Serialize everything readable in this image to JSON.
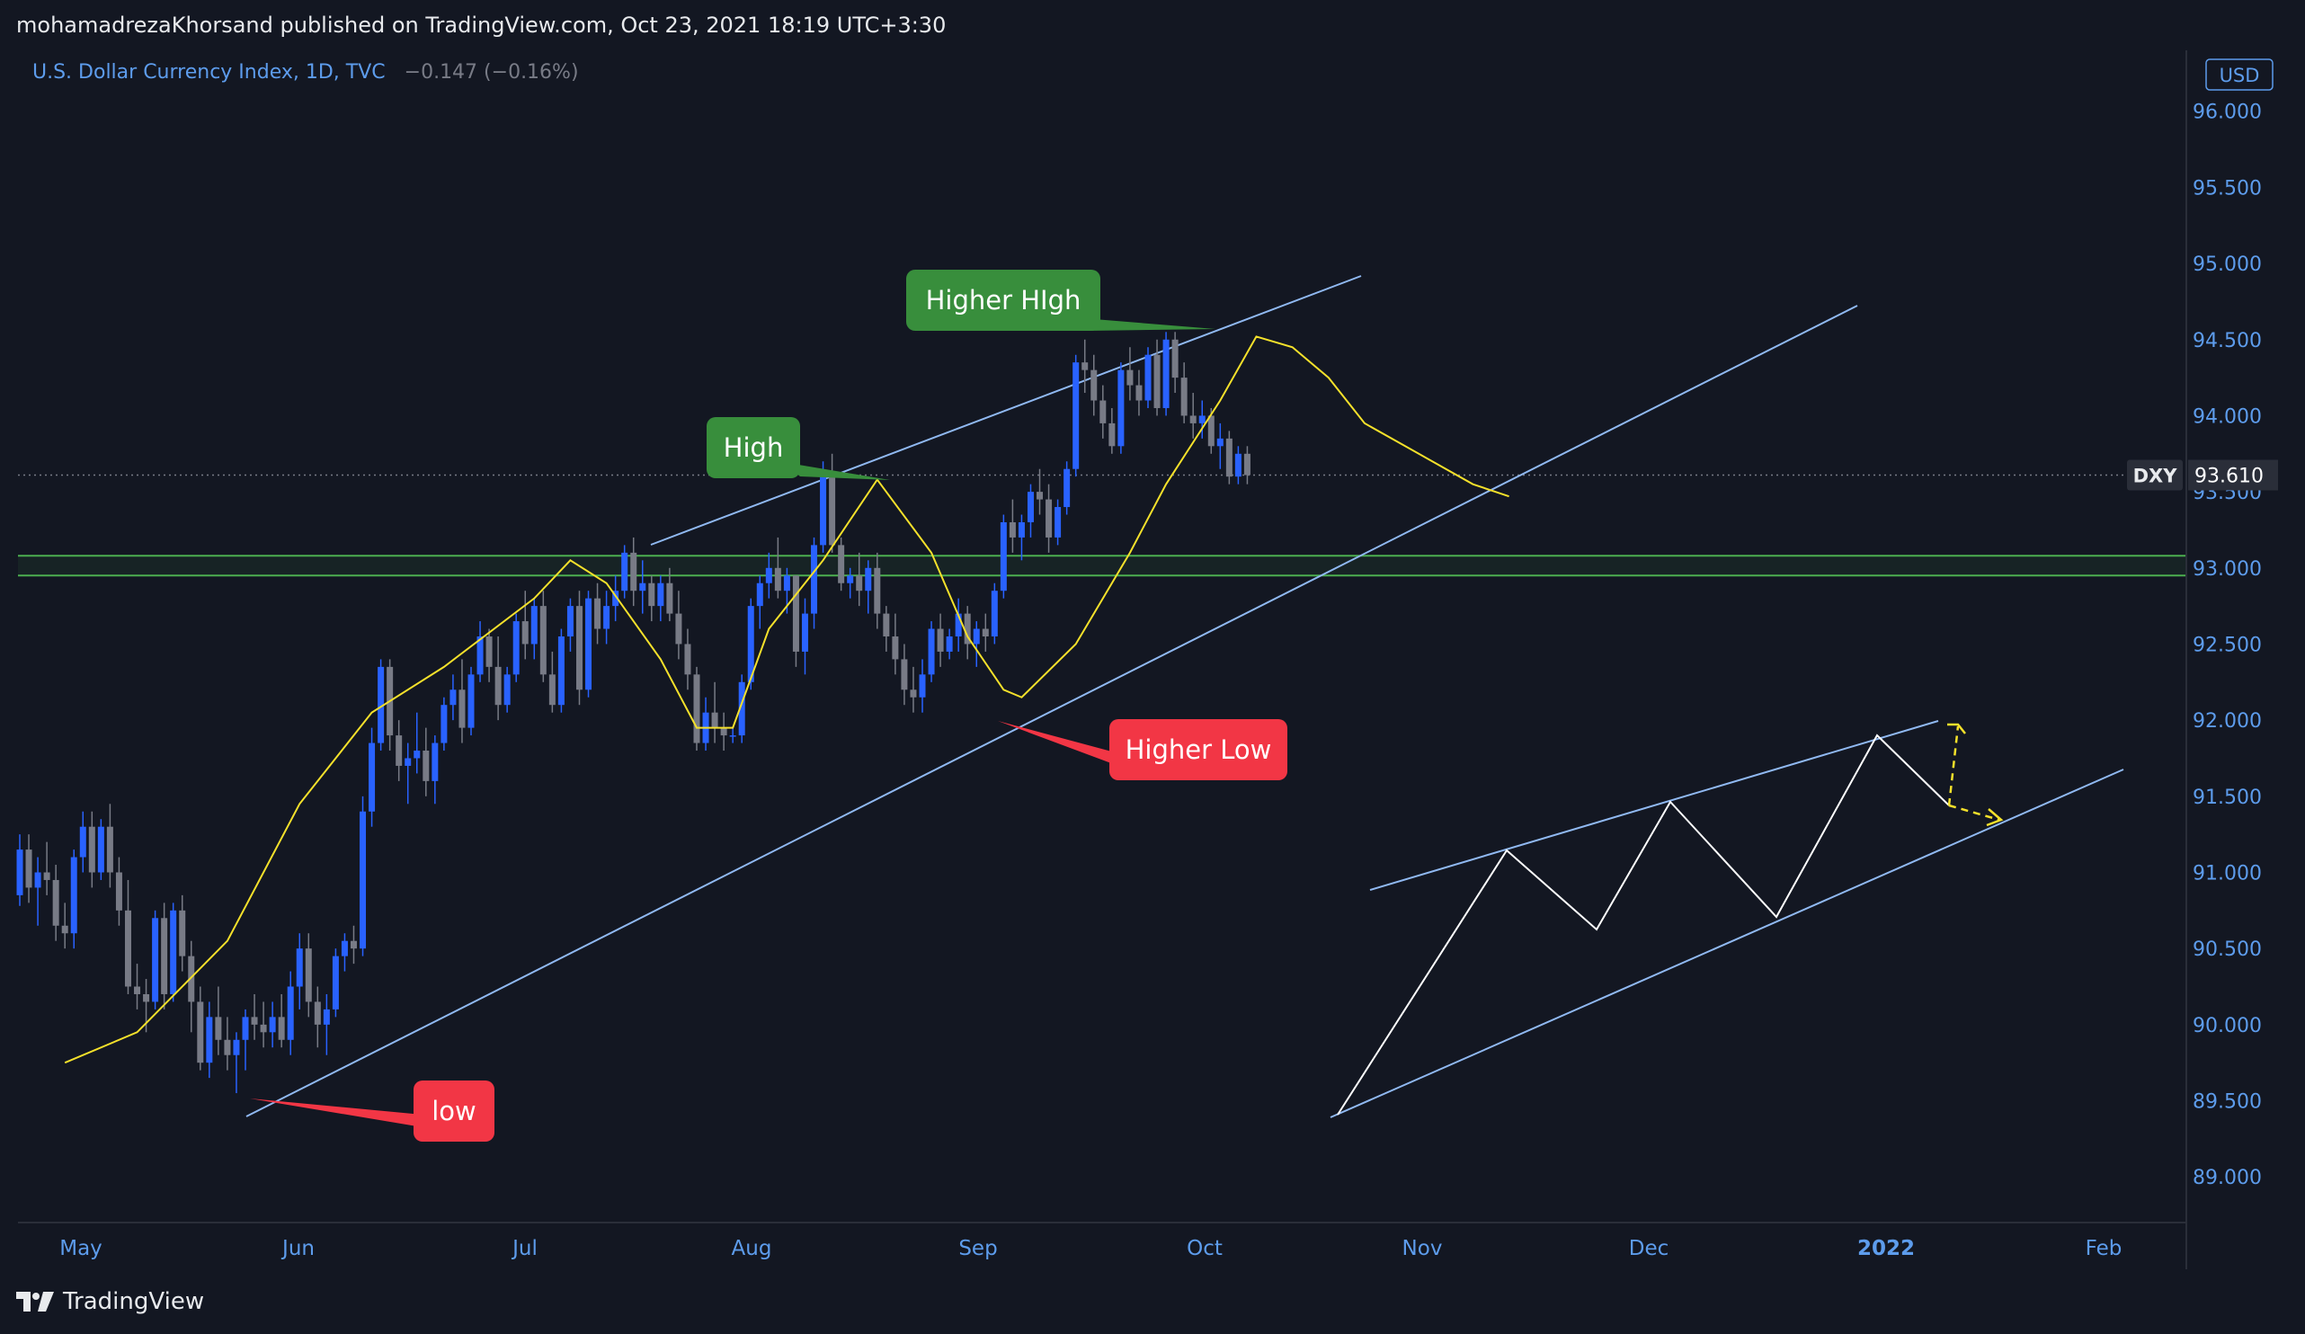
{
  "header": {
    "published": "mohamadrezaKhorsand published on TradingView.com, Oct 23, 2021 18:19 UTC+3:30"
  },
  "legend": {
    "symbol_title": "U.S. Dollar Currency Index, 1D, TVC",
    "change": "−0.147 (−0.16%)"
  },
  "footer": {
    "brand": "TradingView"
  },
  "chart_data": {
    "type": "candlestick",
    "symbol": "DXY",
    "currency": "USD",
    "last_price": "93.610",
    "y_range": [
      88.7,
      96.4
    ],
    "y_ticks": [
      "96.000",
      "95.500",
      "95.000",
      "94.500",
      "94.000",
      "93.500",
      "93.000",
      "92.500",
      "92.000",
      "91.500",
      "91.000",
      "90.500",
      "90.000",
      "89.500",
      "89.000"
    ],
    "x_ticks": [
      "May",
      "Jun",
      "Jul",
      "Aug",
      "Sep",
      "Oct",
      "Nov",
      "Dec",
      "2022",
      "Feb"
    ],
    "bars_per_week": 5,
    "support_zone": [
      92.95,
      93.08
    ],
    "candles": [
      [
        90.85,
        91.25,
        90.78,
        91.15
      ],
      [
        91.15,
        91.25,
        90.8,
        90.9
      ],
      [
        90.9,
        91.1,
        90.65,
        91.0
      ],
      [
        91.0,
        91.2,
        90.85,
        90.95
      ],
      [
        90.95,
        91.05,
        90.55,
        90.65
      ],
      [
        90.65,
        90.8,
        90.5,
        90.6
      ],
      [
        90.6,
        91.15,
        90.5,
        91.1
      ],
      [
        91.1,
        91.4,
        91.0,
        91.3
      ],
      [
        91.3,
        91.4,
        90.9,
        91.0
      ],
      [
        91.0,
        91.35,
        90.95,
        91.3
      ],
      [
        91.3,
        91.45,
        90.9,
        91.0
      ],
      [
        91.0,
        91.1,
        90.65,
        90.75
      ],
      [
        90.75,
        90.95,
        90.2,
        90.25
      ],
      [
        90.25,
        90.4,
        90.1,
        90.2
      ],
      [
        90.2,
        90.3,
        89.95,
        90.15
      ],
      [
        90.15,
        90.75,
        90.1,
        90.7
      ],
      [
        90.7,
        90.8,
        90.1,
        90.2
      ],
      [
        90.2,
        90.8,
        90.15,
        90.75
      ],
      [
        90.75,
        90.85,
        90.35,
        90.45
      ],
      [
        90.45,
        90.55,
        89.95,
        90.15
      ],
      [
        90.15,
        90.25,
        89.7,
        89.75
      ],
      [
        89.75,
        90.15,
        89.65,
        90.05
      ],
      [
        90.05,
        90.25,
        89.8,
        89.9
      ],
      [
        89.9,
        90.05,
        89.7,
        89.8
      ],
      [
        89.8,
        89.95,
        89.55,
        89.9
      ],
      [
        89.9,
        90.1,
        89.7,
        90.05
      ],
      [
        90.05,
        90.2,
        89.9,
        90.0
      ],
      [
        90.0,
        90.15,
        89.85,
        89.95
      ],
      [
        89.95,
        90.15,
        89.85,
        90.05
      ],
      [
        90.05,
        90.2,
        89.85,
        89.9
      ],
      [
        89.9,
        90.35,
        89.8,
        90.25
      ],
      [
        90.25,
        90.6,
        90.1,
        90.5
      ],
      [
        90.5,
        90.6,
        90.05,
        90.15
      ],
      [
        90.15,
        90.25,
        89.85,
        90.0
      ],
      [
        90.0,
        90.2,
        89.8,
        90.1
      ],
      [
        90.1,
        90.5,
        90.05,
        90.45
      ],
      [
        90.45,
        90.6,
        90.35,
        90.55
      ],
      [
        90.55,
        90.65,
        90.4,
        90.5
      ],
      [
        90.5,
        91.5,
        90.45,
        91.4
      ],
      [
        91.4,
        91.95,
        91.3,
        91.85
      ],
      [
        91.85,
        92.4,
        91.8,
        92.35
      ],
      [
        92.35,
        92.4,
        91.8,
        91.9
      ],
      [
        91.9,
        92.0,
        91.6,
        91.7
      ],
      [
        91.7,
        91.85,
        91.45,
        91.75
      ],
      [
        91.75,
        92.05,
        91.65,
        91.8
      ],
      [
        91.8,
        91.95,
        91.5,
        91.6
      ],
      [
        91.6,
        91.9,
        91.45,
        91.85
      ],
      [
        91.85,
        92.15,
        91.8,
        92.1
      ],
      [
        92.1,
        92.3,
        92.0,
        92.2
      ],
      [
        92.2,
        92.4,
        91.85,
        91.95
      ],
      [
        91.95,
        92.35,
        91.9,
        92.3
      ],
      [
        92.3,
        92.65,
        92.25,
        92.55
      ],
      [
        92.55,
        92.6,
        92.25,
        92.35
      ],
      [
        92.35,
        92.55,
        92.0,
        92.1
      ],
      [
        92.1,
        92.35,
        92.05,
        92.3
      ],
      [
        92.3,
        92.7,
        92.25,
        92.65
      ],
      [
        92.65,
        92.85,
        92.4,
        92.5
      ],
      [
        92.5,
        92.8,
        92.4,
        92.75
      ],
      [
        92.75,
        92.85,
        92.25,
        92.3
      ],
      [
        92.3,
        92.45,
        92.05,
        92.1
      ],
      [
        92.1,
        92.6,
        92.05,
        92.55
      ],
      [
        92.55,
        92.8,
        92.45,
        92.75
      ],
      [
        92.75,
        92.85,
        92.1,
        92.2
      ],
      [
        92.2,
        92.85,
        92.15,
        92.8
      ],
      [
        92.8,
        92.9,
        92.5,
        92.6
      ],
      [
        92.6,
        92.85,
        92.5,
        92.75
      ],
      [
        92.75,
        92.95,
        92.65,
        92.85
      ],
      [
        92.85,
        93.15,
        92.8,
        93.1
      ],
      [
        93.1,
        93.2,
        92.75,
        92.85
      ],
      [
        92.85,
        93.05,
        92.7,
        92.9
      ],
      [
        92.9,
        92.95,
        92.65,
        92.75
      ],
      [
        92.75,
        92.95,
        92.65,
        92.9
      ],
      [
        92.9,
        93.0,
        92.65,
        92.7
      ],
      [
        92.7,
        92.85,
        92.4,
        92.5
      ],
      [
        92.5,
        92.6,
        92.2,
        92.3
      ],
      [
        92.3,
        92.35,
        91.8,
        91.85
      ],
      [
        91.85,
        92.15,
        91.8,
        92.05
      ],
      [
        92.05,
        92.25,
        91.85,
        91.95
      ],
      [
        91.95,
        92.05,
        91.8,
        91.9
      ],
      [
        91.9,
        91.95,
        91.85,
        91.9
      ],
      [
        91.9,
        92.3,
        91.85,
        92.25
      ],
      [
        92.25,
        92.8,
        92.2,
        92.75
      ],
      [
        92.75,
        92.95,
        92.6,
        92.9
      ],
      [
        92.9,
        93.1,
        92.8,
        93.0
      ],
      [
        93.0,
        93.2,
        92.8,
        92.85
      ],
      [
        92.85,
        93.0,
        92.7,
        92.95
      ],
      [
        92.95,
        92.95,
        92.35,
        92.45
      ],
      [
        92.45,
        92.8,
        92.3,
        92.7
      ],
      [
        92.7,
        93.2,
        92.6,
        93.15
      ],
      [
        93.15,
        93.7,
        93.1,
        93.6
      ],
      [
        93.6,
        93.75,
        93.1,
        93.15
      ],
      [
        93.15,
        93.2,
        92.85,
        92.9
      ],
      [
        92.9,
        93.0,
        92.8,
        92.95
      ],
      [
        92.95,
        93.1,
        92.75,
        92.85
      ],
      [
        92.85,
        93.05,
        92.7,
        93.0
      ],
      [
        93.0,
        93.1,
        92.6,
        92.7
      ],
      [
        92.7,
        92.75,
        92.45,
        92.55
      ],
      [
        92.55,
        92.7,
        92.3,
        92.4
      ],
      [
        92.4,
        92.5,
        92.1,
        92.2
      ],
      [
        92.2,
        92.35,
        92.05,
        92.15
      ],
      [
        92.15,
        92.4,
        92.05,
        92.3
      ],
      [
        92.3,
        92.65,
        92.25,
        92.6
      ],
      [
        92.6,
        92.7,
        92.35,
        92.45
      ],
      [
        92.45,
        92.6,
        92.4,
        92.55
      ],
      [
        92.55,
        92.8,
        92.45,
        92.7
      ],
      [
        92.7,
        92.75,
        92.4,
        92.5
      ],
      [
        92.5,
        92.65,
        92.35,
        92.6
      ],
      [
        92.6,
        92.7,
        92.45,
        92.55
      ],
      [
        92.55,
        92.9,
        92.5,
        92.85
      ],
      [
        92.85,
        93.35,
        92.8,
        93.3
      ],
      [
        93.3,
        93.45,
        93.1,
        93.2
      ],
      [
        93.2,
        93.35,
        93.05,
        93.3
      ],
      [
        93.3,
        93.55,
        93.2,
        93.5
      ],
      [
        93.5,
        93.65,
        93.35,
        93.45
      ],
      [
        93.45,
        93.55,
        93.1,
        93.2
      ],
      [
        93.2,
        93.45,
        93.15,
        93.4
      ],
      [
        93.4,
        93.7,
        93.35,
        93.65
      ],
      [
        93.65,
        94.4,
        93.6,
        94.35
      ],
      [
        94.35,
        94.5,
        94.15,
        94.3
      ],
      [
        94.3,
        94.4,
        94.0,
        94.1
      ],
      [
        94.1,
        94.2,
        93.85,
        93.95
      ],
      [
        93.95,
        94.05,
        93.75,
        93.8
      ],
      [
        93.8,
        94.35,
        93.75,
        94.3
      ],
      [
        94.3,
        94.45,
        94.1,
        94.2
      ],
      [
        94.2,
        94.3,
        94.0,
        94.1
      ],
      [
        94.1,
        94.45,
        94.05,
        94.4
      ],
      [
        94.4,
        94.5,
        94.0,
        94.05
      ],
      [
        94.05,
        94.55,
        94.0,
        94.5
      ],
      [
        94.5,
        94.55,
        94.15,
        94.25
      ],
      [
        94.25,
        94.35,
        93.95,
        94.0
      ],
      [
        94.0,
        94.15,
        93.85,
        93.95
      ],
      [
        93.95,
        94.1,
        93.85,
        94.0
      ],
      [
        94.0,
        94.05,
        93.75,
        93.8
      ],
      [
        93.8,
        93.95,
        93.65,
        93.85
      ],
      [
        93.85,
        93.9,
        93.55,
        93.6
      ],
      [
        93.6,
        93.8,
        93.55,
        93.75
      ],
      [
        93.75,
        93.8,
        93.55,
        93.61
      ]
    ],
    "ma": [
      [
        0,
        89.75
      ],
      [
        8,
        89.95
      ],
      [
        18,
        90.55
      ],
      [
        26,
        91.45
      ],
      [
        34,
        92.05
      ],
      [
        42,
        92.35
      ],
      [
        52,
        92.8
      ],
      [
        56,
        93.05
      ],
      [
        60,
        92.9
      ],
      [
        66,
        92.4
      ],
      [
        70,
        91.95
      ],
      [
        74,
        91.95
      ],
      [
        78,
        92.6
      ],
      [
        84,
        93.05
      ],
      [
        90,
        93.58
      ],
      [
        96,
        93.1
      ],
      [
        100,
        92.55
      ],
      [
        104,
        92.2
      ],
      [
        106,
        92.15
      ],
      [
        112,
        92.5
      ],
      [
        118,
        93.1
      ],
      [
        122,
        93.55
      ],
      [
        128,
        94.1
      ],
      [
        132,
        94.52
      ],
      [
        136,
        94.45
      ],
      [
        140,
        94.25
      ],
      [
        144,
        93.95
      ],
      [
        150,
        93.75
      ],
      [
        156,
        93.55
      ],
      [
        160,
        93.47
      ]
    ],
    "annotations": [
      {
        "label": "Higher HIgh",
        "color": "#388e3c"
      },
      {
        "label": "High",
        "color": "#388e3c"
      },
      {
        "label": "Higher Low",
        "color": "#f23645"
      },
      {
        "label": "low",
        "color": "#f23645"
      }
    ],
    "up_color": "#2962ff",
    "down_color": "#787b86",
    "trendline_color": "#90b9f2",
    "ma_color": "#f5e12b",
    "zone_color": "#4caf50"
  }
}
